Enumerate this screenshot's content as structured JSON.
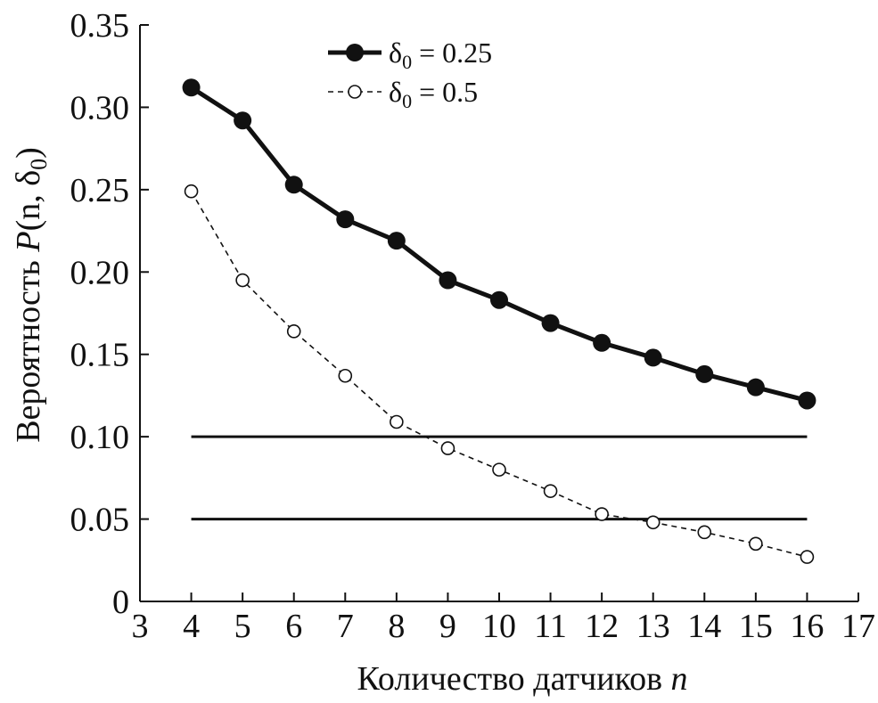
{
  "chart_data": {
    "type": "line",
    "title": "",
    "xlabel": "Количество датчиков",
    "xlabel_var": "n",
    "ylabel_prefix": "Вероятность ",
    "ylabel_func": "P",
    "ylabel_args": "(n, δ",
    "ylabel_sub": "0",
    "ylabel_close": ")",
    "xlim": [
      3,
      17
    ],
    "ylim": [
      0,
      0.35
    ],
    "xticks": [
      "3",
      "4",
      "5",
      "6",
      "7",
      "8",
      "9",
      "10",
      "11",
      "12",
      "13",
      "14",
      "15",
      "16",
      "17"
    ],
    "yticks": [
      "0",
      "0.05",
      "0.10",
      "0.15",
      "0.20",
      "0.25",
      "0.30",
      "0.35"
    ],
    "x": [
      4,
      5,
      6,
      7,
      8,
      9,
      10,
      11,
      12,
      13,
      14,
      15,
      16
    ],
    "series": [
      {
        "name": "δ0 = 0.25",
        "legend_symbol": "δ",
        "legend_sub": "0",
        "legend_value": " = 0.25",
        "style": "solid-filled",
        "values": [
          0.312,
          0.292,
          0.253,
          0.232,
          0.219,
          0.195,
          0.183,
          0.169,
          0.157,
          0.148,
          0.138,
          0.13,
          0.122
        ]
      },
      {
        "name": "δ0 = 0.5",
        "legend_symbol": "δ",
        "legend_sub": "0",
        "legend_value": " = 0.5",
        "style": "dashed-open",
        "values": [
          0.249,
          0.195,
          0.164,
          0.137,
          0.109,
          0.093,
          0.08,
          0.067,
          0.053,
          0.048,
          0.042,
          0.035,
          0.027
        ]
      }
    ],
    "reference_lines": [
      {
        "y": 0.1,
        "x_from": 4,
        "x_to": 16
      },
      {
        "y": 0.05,
        "x_from": 4,
        "x_to": 16
      }
    ],
    "legend_position": "top-center",
    "grid": false
  }
}
